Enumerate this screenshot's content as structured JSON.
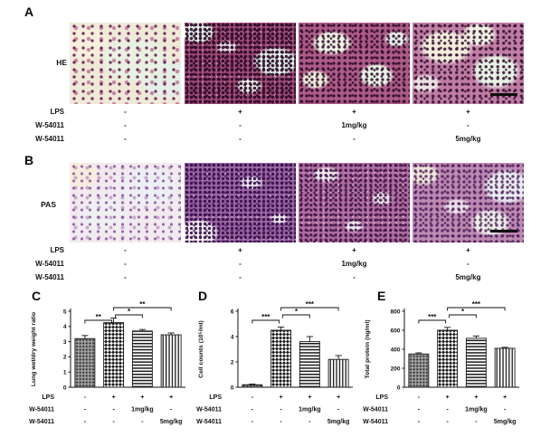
{
  "figure": {
    "background": "#ffffff"
  },
  "colors": {
    "bar_outline": "#1a1a1a",
    "axis": "#111111",
    "scale_bar": "#0d0d0d"
  },
  "panels": {
    "A": {
      "letter": "A",
      "stain": "HE",
      "rows": [
        {
          "label": "LPS",
          "values": [
            "-",
            "+",
            "+",
            "+"
          ]
        },
        {
          "label": "W-54011",
          "values": [
            "-",
            "-",
            "1mg/kg",
            "-"
          ]
        },
        {
          "label": "W-54011",
          "values": [
            "-",
            "-",
            "-",
            "5mg/kg"
          ]
        }
      ]
    },
    "B": {
      "letter": "B",
      "stain": "PAS",
      "rows": [
        {
          "label": "LPS",
          "values": [
            "-",
            "+",
            "+",
            "+"
          ]
        },
        {
          "label": "W-54011",
          "values": [
            "-",
            "-",
            "1mg/kg",
            "-"
          ]
        },
        {
          "label": "W-54011",
          "values": [
            "-",
            "-",
            "-",
            "5mg/kg"
          ]
        }
      ]
    }
  },
  "chart_data": [
    {
      "panel": "C",
      "type": "bar",
      "ylabel": "Lung wet/dry weight ratio",
      "ylim": [
        0,
        5
      ],
      "yticks": [
        0,
        1,
        2,
        3,
        4,
        5
      ],
      "values": [
        3.2,
        4.25,
        3.7,
        3.45
      ],
      "errors": [
        0.2,
        0.3,
        0.1,
        0.12
      ],
      "bar_patterns": [
        "gray-dots",
        "checker",
        "hlines",
        "vlines"
      ],
      "significance": [
        {
          "from": 0,
          "to": 1,
          "label": "**",
          "level": "low"
        },
        {
          "from": 1,
          "to": 2,
          "label": "*",
          "level": "mid"
        },
        {
          "from": 1,
          "to": 3,
          "label": "**",
          "level": "high"
        }
      ],
      "group_rows": [
        {
          "label": "LPS",
          "values": [
            "-",
            "+",
            "+",
            "+"
          ]
        },
        {
          "label": "W-54011",
          "values": [
            "-",
            "-",
            "1mg/kg",
            "-"
          ]
        },
        {
          "label": "W-54011",
          "values": [
            "-",
            "-",
            "-",
            "5mg/kg"
          ]
        }
      ]
    },
    {
      "panel": "D",
      "type": "bar",
      "ylabel": "Cell counts (10⁵/ml)",
      "ylim": [
        0,
        6
      ],
      "yticks": [
        0,
        2,
        4,
        6
      ],
      "values": [
        0.2,
        4.5,
        3.6,
        2.2
      ],
      "errors": [
        0.05,
        0.25,
        0.4,
        0.3
      ],
      "bar_patterns": [
        "gray-dots",
        "checker",
        "hlines",
        "vlines"
      ],
      "significance": [
        {
          "from": 0,
          "to": 1,
          "label": "***",
          "level": "low"
        },
        {
          "from": 1,
          "to": 2,
          "label": "*",
          "level": "mid"
        },
        {
          "from": 1,
          "to": 3,
          "label": "***",
          "level": "high"
        }
      ],
      "group_rows": [
        {
          "label": "LPS",
          "values": [
            "-",
            "+",
            "+",
            "+"
          ]
        },
        {
          "label": "W-54011",
          "values": [
            "-",
            "-",
            "1mg/kg",
            "-"
          ]
        },
        {
          "label": "W-54011",
          "values": [
            "-",
            "-",
            "-",
            "5mg/kg"
          ]
        }
      ]
    },
    {
      "panel": "E",
      "type": "bar",
      "ylabel": "Total protein (ng/ml)",
      "ylim": [
        0,
        800
      ],
      "yticks": [
        0,
        200,
        400,
        600,
        800
      ],
      "values": [
        350,
        600,
        515,
        410
      ],
      "errors": [
        12,
        30,
        25,
        10
      ],
      "bar_patterns": [
        "gray-dots",
        "checker",
        "hlines",
        "vlines"
      ],
      "significance": [
        {
          "from": 0,
          "to": 1,
          "label": "***",
          "level": "low"
        },
        {
          "from": 1,
          "to": 2,
          "label": "*",
          "level": "mid"
        },
        {
          "from": 1,
          "to": 3,
          "label": "***",
          "level": "high"
        }
      ],
      "group_rows": [
        {
          "label": "LPS",
          "values": [
            "-",
            "+",
            "+",
            "+"
          ]
        },
        {
          "label": "W-54011",
          "values": [
            "-",
            "-",
            "1mg/kg",
            "-"
          ]
        },
        {
          "label": "W-54011",
          "values": [
            "-",
            "-",
            "-",
            "5mg/kg"
          ]
        }
      ]
    }
  ]
}
